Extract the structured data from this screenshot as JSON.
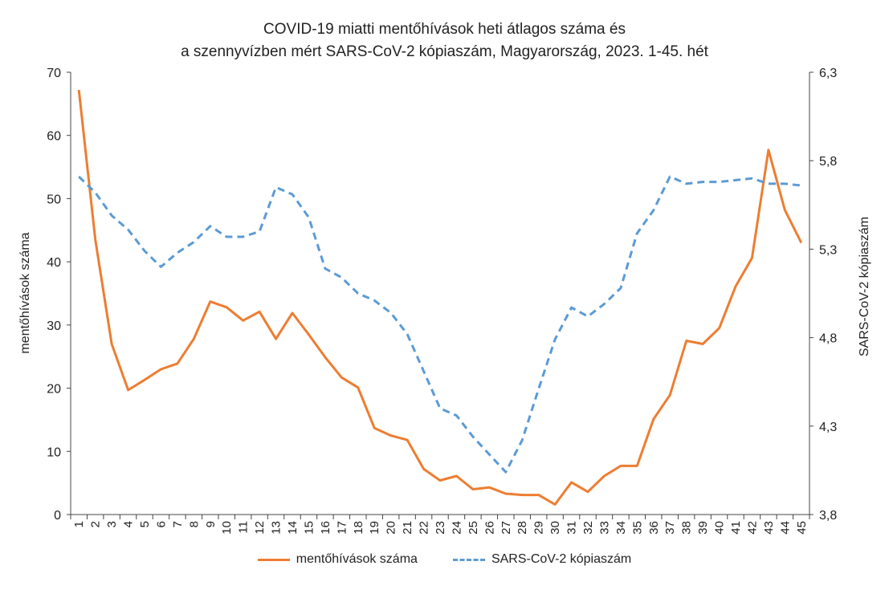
{
  "chart_data": {
    "type": "line",
    "title_line1": "COVID-19 miatti mentőhívások heti átlagos száma és",
    "title_line2": "a szennyvízben mért SARS-CoV-2 kópiaszám, Magyarország, 2023. 1-45. hét",
    "ylabel_left": "mentőhívások száma",
    "ylabel_right": "SARS-CoV-2 kópiaszám",
    "x": [
      "1",
      "2",
      "3",
      "4",
      "5",
      "6",
      "7",
      "8",
      "9",
      "10",
      "11",
      "12",
      "13",
      "14",
      "15",
      "16",
      "17",
      "18",
      "19",
      "20",
      "21",
      "22",
      "23",
      "24",
      "25",
      "26",
      "27",
      "28",
      "29",
      "30",
      "31",
      "32",
      "33",
      "34",
      "35",
      "36",
      "37",
      "38",
      "39",
      "40",
      "41",
      "42",
      "43",
      "44",
      "45"
    ],
    "y_left": {
      "min": 0,
      "max": 70,
      "ticks": [
        "0",
        "10",
        "20",
        "30",
        "40",
        "50",
        "60",
        "70"
      ]
    },
    "y_right": {
      "min": 3.8,
      "max": 6.3,
      "ticks": [
        "3,8",
        "4,3",
        "4,8",
        "5,3",
        "5,8",
        "6,3"
      ]
    },
    "series": [
      {
        "name": "mentőhívások száma",
        "axis": "left",
        "color": "#ed7d31",
        "style": "solid",
        "values": [
          67.2,
          43.5,
          27,
          19.7,
          21.3,
          23,
          23.9,
          27.8,
          33.7,
          32.8,
          30.7,
          32.1,
          27.8,
          31.9,
          28.5,
          24.9,
          21.7,
          20.1,
          13.7,
          12.5,
          11.8,
          7.2,
          5.4,
          6.1,
          4,
          4.3,
          3.3,
          3.1,
          3.1,
          1.6,
          5.1,
          3.6,
          6.1,
          7.7,
          7.7,
          15.1,
          18.9,
          27.5,
          27,
          29.5,
          36.1,
          40.6,
          57.7,
          48.2,
          43
        ]
      },
      {
        "name": "SARS-CoV-2 kópiaszám",
        "axis": "right",
        "color": "#5b9bd5",
        "style": "dashed",
        "values": [
          5.71,
          5.62,
          5.49,
          5.41,
          5.29,
          5.2,
          5.28,
          5.34,
          5.43,
          5.37,
          5.37,
          5.4,
          5.65,
          5.61,
          5.48,
          5.19,
          5.14,
          5.05,
          5.01,
          4.94,
          4.82,
          4.61,
          4.4,
          4.36,
          4.24,
          4.14,
          4.04,
          4.22,
          4.51,
          4.79,
          4.97,
          4.92,
          4.99,
          5.08,
          5.39,
          5.52,
          5.71,
          5.67,
          5.68,
          5.68,
          5.69,
          5.7,
          5.67,
          5.67,
          5.66
        ]
      }
    ]
  }
}
